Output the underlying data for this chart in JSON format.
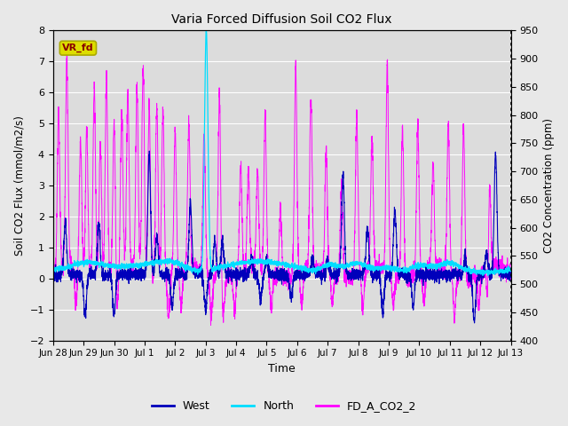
{
  "title": "Varia Forced Diffusion Soil CO2 Flux",
  "xlabel": "Time",
  "ylabel_left": "Soil CO2 Flux (mmol/m2/s)",
  "ylabel_right": "CO2 Concentration (ppm)",
  "ylim_left": [
    -2.0,
    8.0
  ],
  "ylim_right": [
    400,
    950
  ],
  "yticks_left": [
    -2.0,
    -1.0,
    0.0,
    1.0,
    2.0,
    3.0,
    4.0,
    5.0,
    6.0,
    7.0,
    8.0
  ],
  "yticks_right": [
    400,
    450,
    500,
    550,
    600,
    650,
    700,
    750,
    800,
    850,
    900,
    950
  ],
  "xtick_labels": [
    "Jun 28",
    "Jun 29",
    "Jun 30",
    "Jul 1",
    "Jul 2",
    "Jul 3",
    "Jul 4",
    "Jul 5",
    "Jul 6",
    "Jul 7",
    "Jul 8",
    "Jul 9",
    "Jul 10",
    "Jul 11",
    "Jul 12",
    "Jul 13"
  ],
  "colors": {
    "west": "#0000bb",
    "north": "#00ddff",
    "fd_a_co2_2": "#ff00ff"
  },
  "legend_labels": [
    "West",
    "North",
    "FD_A_CO2_2"
  ],
  "annotation_text": "VR_fd",
  "annotation_bg": "#dddd00",
  "annotation_fg": "#880000",
  "bg_color": "#e8e8e8",
  "plot_bg": "#dcdcdc",
  "grid_color": "#ffffff",
  "fig_bg": "#e8e8e8"
}
